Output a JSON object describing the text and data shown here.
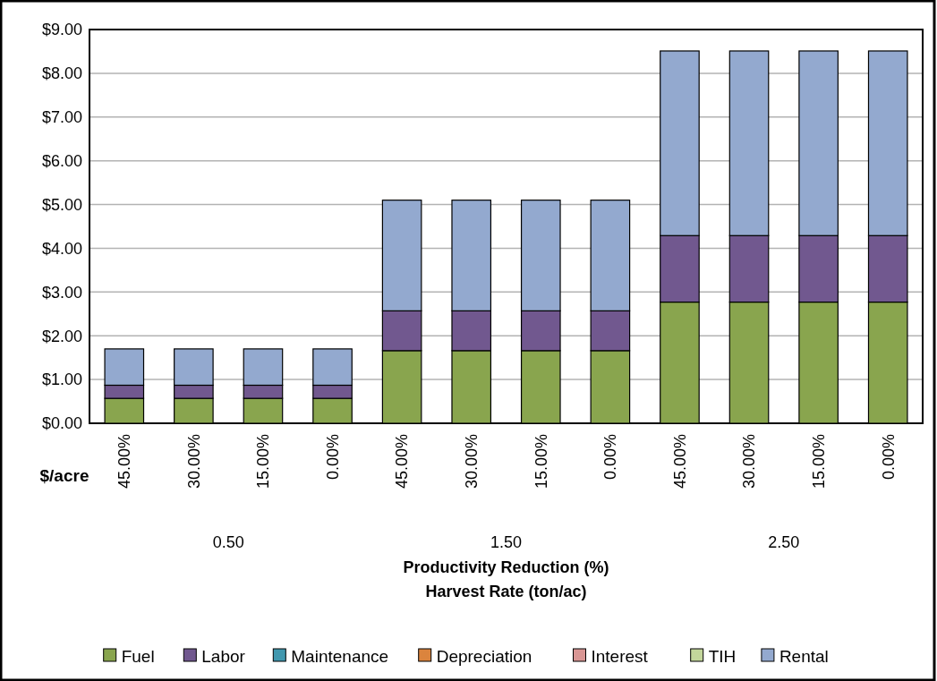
{
  "chart_data": {
    "type": "bar",
    "stacked": true,
    "ylabel": "$/acre",
    "xlabel": "Productivity Reduction (%)\nHarvest Rate (ton/ac)",
    "categories": [
      "45.00%",
      "30.00%",
      "15.00%",
      "0.00%",
      "45.00%",
      "30.00%",
      "15.00%",
      "0.00%",
      "45.00%",
      "30.00%",
      "15.00%",
      "0.00%"
    ],
    "annotations": [
      "0.50",
      "1.50",
      "2.50"
    ],
    "series": [
      {
        "name": "Fuel",
        "color": "#89a54e",
        "values": [
          0.57,
          0.57,
          0.57,
          0.57,
          1.66,
          1.66,
          1.66,
          1.66,
          2.77,
          2.77,
          2.77,
          2.77
        ]
      },
      {
        "name": "Labor",
        "color": "#71588f",
        "values": [
          0.3,
          0.3,
          0.3,
          0.3,
          0.91,
          0.91,
          0.91,
          0.91,
          1.52,
          1.52,
          1.52,
          1.52
        ]
      },
      {
        "name": "Maintenance",
        "color": "#4198af",
        "values": [
          0,
          0,
          0,
          0,
          0,
          0,
          0,
          0,
          0,
          0,
          0,
          0
        ]
      },
      {
        "name": "Depreciation",
        "color": "#db843d",
        "values": [
          0,
          0,
          0,
          0,
          0,
          0,
          0,
          0,
          0,
          0,
          0,
          0
        ]
      },
      {
        "name": "Interest",
        "color": "#d99694",
        "values": [
          0,
          0,
          0,
          0,
          0,
          0,
          0,
          0,
          0,
          0,
          0,
          0
        ]
      },
      {
        "name": "TIH",
        "color": "#c3d69b",
        "values": [
          0,
          0,
          0,
          0,
          0,
          0,
          0,
          0,
          0,
          0,
          0,
          0
        ]
      },
      {
        "name": "Rental",
        "color": "#93a9cf",
        "values": [
          0.83,
          0.83,
          0.83,
          0.83,
          2.53,
          2.53,
          2.53,
          2.53,
          4.22,
          4.22,
          4.22,
          4.22
        ]
      }
    ],
    "ylim": [
      0,
      9
    ],
    "yticks": [
      {
        "value": 0,
        "label": "$0.00"
      },
      {
        "value": 1,
        "label": "$1.00"
      },
      {
        "value": 2,
        "label": "$2.00"
      },
      {
        "value": 3,
        "label": "$3.00"
      },
      {
        "value": 4,
        "label": "$4.00"
      },
      {
        "value": 5,
        "label": "$5.00"
      },
      {
        "value": 6,
        "label": "$6.00"
      },
      {
        "value": 7,
        "label": "$7.00"
      },
      {
        "value": 8,
        "label": "$8.00"
      },
      {
        "value": 9,
        "label": "$9.00"
      }
    ],
    "grid": "y",
    "legend": "bottom"
  }
}
